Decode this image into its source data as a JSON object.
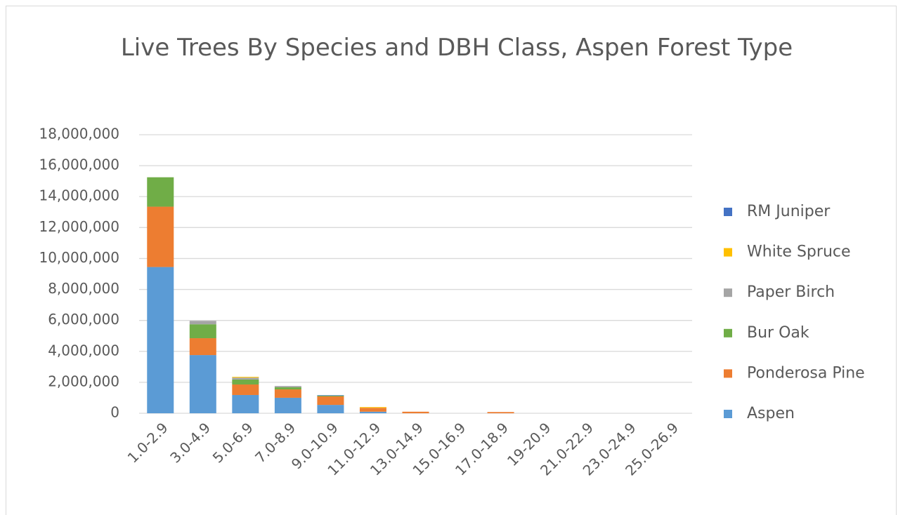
{
  "chart_data": {
    "type": "bar",
    "stacked": true,
    "title": "Live Trees By Species and DBH Class, Aspen Forest Type",
    "categories": [
      "1.0-2.9",
      "3.0-4.9",
      "5.0-6.9",
      "7.0-8.9",
      "9.0-10.9",
      "11.0-12.9",
      "13.0-14.9",
      "15.0-16.9",
      "17.0-18.9",
      "19-20.9",
      "21.0-22.9",
      "23.0-24.9",
      "25.0-26.9"
    ],
    "series": [
      {
        "name": "Aspen",
        "color": "#5b9bd5",
        "values": [
          9450000,
          3760000,
          1180000,
          1000000,
          540000,
          100000,
          0,
          0,
          0,
          0,
          0,
          0,
          0
        ]
      },
      {
        "name": "Ponderosa Pine",
        "color": "#ed7d31",
        "values": [
          3900000,
          1090000,
          680000,
          540000,
          550000,
          250000,
          100000,
          0,
          80000,
          0,
          0,
          0,
          0
        ]
      },
      {
        "name": "Bur Oak",
        "color": "#70ad47",
        "values": [
          1900000,
          900000,
          320000,
          140000,
          50000,
          0,
          0,
          0,
          0,
          0,
          0,
          0,
          0
        ]
      },
      {
        "name": "Paper Birch",
        "color": "#a5a5a5",
        "values": [
          0,
          220000,
          120000,
          80000,
          0,
          0,
          0,
          0,
          0,
          0,
          0,
          0,
          0
        ]
      },
      {
        "name": "White Spruce",
        "color": "#ffc000",
        "values": [
          0,
          0,
          50000,
          0,
          0,
          50000,
          0,
          0,
          0,
          0,
          0,
          0,
          0
        ]
      },
      {
        "name": "RM Juniper",
        "color": "#4472c4",
        "values": [
          0,
          0,
          0,
          0,
          30000,
          0,
          0,
          0,
          0,
          0,
          0,
          0,
          0
        ]
      }
    ],
    "ylim": [
      0,
      18000000
    ],
    "yticks": [
      0,
      {
        "value": 2000000,
        "label": "2,000,000"
      },
      {
        "value": 4000000,
        "label": "4,000,000"
      },
      {
        "value": 6000000,
        "label": "6,000,000"
      },
      {
        "value": 8000000,
        "label": "8,000,000"
      },
      {
        "value": 10000000,
        "label": "10,000,000"
      },
      {
        "value": 12000000,
        "label": "12,000,000"
      },
      {
        "value": 14000000,
        "label": "14,000,000"
      },
      {
        "value": 16000000,
        "label": "16,000,000"
      },
      {
        "value": 18000000,
        "label": "18,000,000"
      }
    ],
    "grid": true,
    "legend": "right"
  }
}
